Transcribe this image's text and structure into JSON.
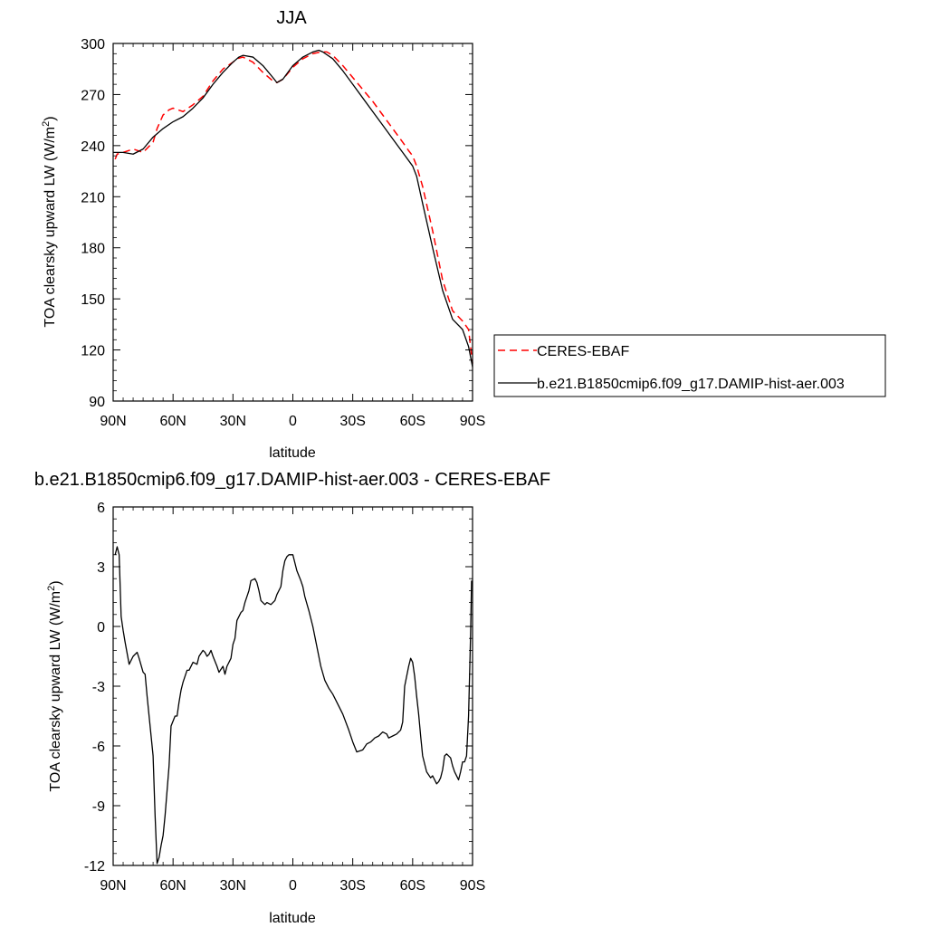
{
  "chart_data": [
    {
      "type": "line",
      "title": "JJA",
      "xlabel": "latitude",
      "ylabel": "TOA clearsky upward LW (W/m",
      "ylabel_sup": "2",
      "ylabel_close": ")",
      "xlim": [
        90,
        -90
      ],
      "ylim": [
        90,
        300
      ],
      "xticks": [
        {
          "value": 90,
          "label": "90N"
        },
        {
          "value": 60,
          "label": "60N"
        },
        {
          "value": 30,
          "label": "30N"
        },
        {
          "value": 0,
          "label": "0"
        },
        {
          "value": -30,
          "label": "30S"
        },
        {
          "value": -60,
          "label": "60S"
        },
        {
          "value": -90,
          "label": "90S"
        }
      ],
      "yticks": [
        90,
        120,
        150,
        180,
        210,
        240,
        270,
        300
      ],
      "grid": false,
      "legend": "right, outside plot",
      "series": [
        {
          "name": "CERES-EBAF",
          "color": "#ff0000",
          "dash": "dashed",
          "x": [
            89,
            88,
            85,
            80,
            75,
            70,
            68,
            65,
            62,
            60,
            55,
            50,
            45,
            40,
            35,
            30,
            28,
            25,
            20,
            15,
            10,
            8,
            5,
            0,
            -5,
            -10,
            -14,
            -17,
            -20,
            -25,
            -30,
            -35,
            -40,
            -45,
            -50,
            -55,
            -58,
            -60,
            -62,
            -65,
            -70,
            -75,
            -80,
            -85,
            -88,
            -90
          ],
          "y": [
            232,
            235,
            236,
            238,
            236,
            242,
            250,
            258,
            261,
            262,
            260,
            264,
            269,
            278,
            285,
            289,
            291,
            292,
            289,
            283,
            278,
            277,
            279,
            286,
            291,
            294,
            295,
            295,
            293,
            287,
            280,
            273,
            266,
            258,
            250,
            242,
            237,
            234,
            228,
            216,
            190,
            161,
            143,
            137,
            132,
            112
          ]
        },
        {
          "name": "b.e21.B1850cmip6.f09_g17.DAMIP-hist-aer.003",
          "color": "#000000",
          "dash": "solid",
          "x": [
            90,
            88,
            85,
            80,
            75,
            70,
            65,
            60,
            55,
            50,
            45,
            40,
            35,
            30,
            27,
            25,
            20,
            15,
            10,
            8,
            5,
            0,
            -5,
            -10,
            -13,
            -15,
            -20,
            -25,
            -30,
            -35,
            -40,
            -45,
            -50,
            -55,
            -60,
            -62,
            -65,
            -70,
            -75,
            -80,
            -85,
            -88,
            -90
          ],
          "y": [
            236,
            236,
            236,
            235,
            238,
            245,
            250,
            254,
            257,
            262,
            268,
            276,
            283,
            289,
            292,
            293,
            292,
            287,
            280,
            277,
            279,
            287,
            292,
            295,
            296,
            295,
            291,
            284,
            276,
            268,
            260,
            252,
            244,
            236,
            228,
            222,
            206,
            180,
            155,
            138,
            132,
            122,
            110
          ]
        }
      ]
    },
    {
      "type": "line",
      "title": "b.e21.B1850cmip6.f09_g17.DAMIP-hist-aer.003 - CERES-EBAF",
      "xlabel": "latitude",
      "ylabel": "TOA clearsky upward LW (W/m",
      "ylabel_sup": "2",
      "ylabel_close": ")",
      "xlim": [
        90,
        -90
      ],
      "ylim": [
        -12,
        6
      ],
      "xticks": [
        {
          "value": 90,
          "label": "90N"
        },
        {
          "value": 60,
          "label": "60N"
        },
        {
          "value": 30,
          "label": "30N"
        },
        {
          "value": 0,
          "label": "0"
        },
        {
          "value": -30,
          "label": "30S"
        },
        {
          "value": -60,
          "label": "60S"
        },
        {
          "value": -90,
          "label": "90S"
        }
      ],
      "yticks": [
        -12,
        -9,
        -6,
        -3,
        0,
        3,
        6
      ],
      "grid": false,
      "series": [
        {
          "color": "#000000",
          "dash": "solid",
          "x": [
            89,
            88,
            87,
            86,
            85,
            84,
            82,
            80,
            78,
            77,
            75,
            74,
            73,
            71,
            70,
            69,
            68,
            67,
            66,
            65,
            64,
            62,
            61,
            59,
            58,
            57,
            56,
            55,
            53,
            52,
            50,
            48,
            47,
            45,
            44,
            43,
            42,
            41,
            40,
            38,
            37,
            35,
            34,
            33,
            31,
            30,
            29,
            28,
            26,
            25,
            24,
            22,
            21,
            19,
            18,
            17,
            16,
            14,
            13,
            11,
            9,
            8,
            6,
            5,
            4,
            3,
            2,
            0,
            -2,
            -4,
            -5,
            -6,
            -8,
            -10,
            -12,
            -14,
            -16,
            -18,
            -20,
            -22,
            -25,
            -28,
            -30,
            -32,
            -35,
            -37,
            -39,
            -40,
            -41,
            -43,
            -45,
            -47,
            -48,
            -50,
            -52,
            -54,
            -55,
            -56,
            -58,
            -59,
            -60,
            -61,
            -62,
            -63,
            -64,
            -65,
            -67,
            -69,
            -70,
            -72,
            -73,
            -74,
            -75,
            -76,
            -77,
            -79,
            -80,
            -81,
            -83,
            -84,
            -85,
            -86,
            -87,
            -88,
            -89,
            -89.5
          ],
          "y": [
            3.6,
            4.0,
            3.6,
            0.5,
            -0.2,
            -0.8,
            -1.9,
            -1.5,
            -1.3,
            -1.6,
            -2.3,
            -2.4,
            -3.5,
            -5.5,
            -6.5,
            -9.5,
            -11.9,
            -11.6,
            -11.0,
            -10.5,
            -9.5,
            -7.0,
            -5.0,
            -4.5,
            -4.5,
            -3.8,
            -3.2,
            -2.8,
            -2.2,
            -2.2,
            -1.8,
            -1.9,
            -1.5,
            -1.2,
            -1.3,
            -1.5,
            -1.4,
            -1.2,
            -1.5,
            -2.0,
            -2.3,
            -2.0,
            -2.4,
            -2.0,
            -1.6,
            -0.9,
            -0.6,
            0.3,
            0.7,
            0.8,
            1.2,
            1.8,
            2.3,
            2.4,
            2.2,
            1.8,
            1.3,
            1.1,
            1.2,
            1.1,
            1.3,
            1.6,
            2.0,
            2.8,
            3.3,
            3.5,
            3.6,
            3.6,
            2.8,
            2.3,
            2.0,
            1.5,
            0.8,
            0.0,
            -1.0,
            -2.0,
            -2.7,
            -3.1,
            -3.4,
            -3.8,
            -4.4,
            -5.2,
            -5.8,
            -6.3,
            -6.2,
            -5.9,
            -5.8,
            -5.7,
            -5.6,
            -5.5,
            -5.3,
            -5.4,
            -5.6,
            -5.5,
            -5.4,
            -5.2,
            -4.8,
            -3.0,
            -2.0,
            -1.6,
            -1.8,
            -2.5,
            -3.5,
            -4.4,
            -5.5,
            -6.5,
            -7.3,
            -7.6,
            -7.5,
            -7.9,
            -7.8,
            -7.6,
            -7.2,
            -6.5,
            -6.4,
            -6.6,
            -7.0,
            -7.3,
            -7.7,
            -7.3,
            -6.8,
            -6.8,
            -6.5,
            -4.5,
            -0.5,
            2.3
          ]
        }
      ]
    }
  ]
}
